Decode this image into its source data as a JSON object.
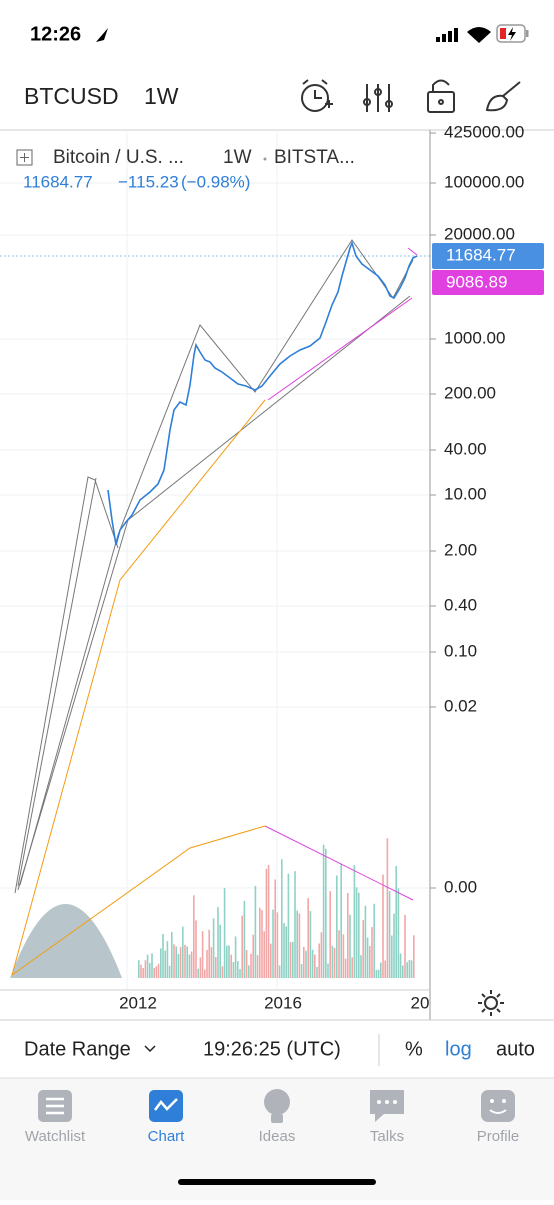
{
  "status_bar": {
    "time": "12:26"
  },
  "header": {
    "symbol": "BTCUSD",
    "interval": "1W"
  },
  "legend": {
    "name": "Bitcoin / U.S. ...",
    "interval": "1W",
    "exchange": "BITSTA...",
    "last": "11684.77",
    "change": "−115.23",
    "change_pct": "(−0.98%)"
  },
  "price_axis": {
    "labels": [
      "425000.00",
      "100000.00",
      "20000.00",
      "1000.00",
      "200.00",
      "40.00",
      "10.00",
      "2.00",
      "0.40",
      "0.10",
      "0.02",
      "0.00"
    ],
    "price_tag": "11684.77",
    "line_tag": "9086.89"
  },
  "time_axis": {
    "labels": [
      "2012",
      "2016",
      "20"
    ]
  },
  "bottom_bar": {
    "date_range": "Date Range",
    "time": "19:26:25 (UTC)",
    "percent": "%",
    "log": "log",
    "auto": "auto"
  },
  "tabs": [
    "Watchlist",
    "Chart",
    "Ideas",
    "Talks",
    "Profile"
  ]
}
